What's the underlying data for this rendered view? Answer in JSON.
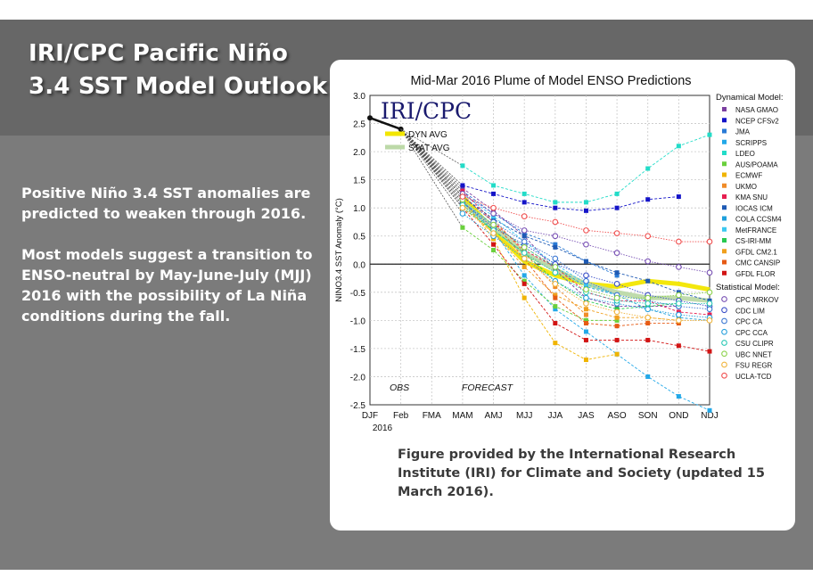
{
  "slide": {
    "title_line1": "IRI/CPC Pacific Niño",
    "title_line2": "3.4 SST Model Outlook",
    "paragraph1": "Positive Niño 3.4 SST anomalies are predicted to weaken through 2016.",
    "paragraph2": "Most models suggest a transition to ENSO-neutral by May-June-July (MJJ) 2016 with the possibility of La Niña conditions during the fall.",
    "caption": "Figure provided by the International Research Institute (IRI) for Climate and Society (updated 15 March 2016)."
  },
  "colors": {
    "title_band": "#676767",
    "background": "#7b7b7b",
    "text": "#ffffff"
  },
  "chart_data": {
    "type": "line",
    "title": "Mid-Mar 2016 Plume of Model ENSO Predictions",
    "ylabel": "NINO3.4 SST Anomaly (°C)",
    "logo": "IRI/CPC",
    "x": [
      "DJF",
      "Feb",
      "FMA",
      "MAM",
      "AMJ",
      "MJJ",
      "JJA",
      "JAS",
      "ASO",
      "SON",
      "OND",
      "NDJ"
    ],
    "x_sublabel": "2016",
    "ylim": [
      -2.5,
      3.0
    ],
    "yticks": [
      "3.0",
      "2.5",
      "2.0",
      "1.5",
      "1.0",
      "0.5",
      "0.0",
      "-0.5",
      "-1.0",
      "-1.5",
      "-2.0",
      "-2.5"
    ],
    "obs_label": "OBS",
    "forecast_label": "FORECAST",
    "obs": [
      2.6,
      2.4
    ],
    "averages": [
      {
        "name": "DYN AVG",
        "color": "#f2e600",
        "values": [
          null,
          null,
          null,
          1.2,
          0.6,
          0.05,
          -0.2,
          -0.35,
          -0.4,
          -0.3,
          -0.35,
          -0.45
        ]
      },
      {
        "name": "STAT AVG",
        "color": "#bcd9a8",
        "values": [
          null,
          null,
          null,
          1.1,
          0.65,
          0.2,
          -0.1,
          -0.35,
          -0.5,
          -0.6,
          -0.6,
          -0.65
        ]
      }
    ],
    "legend_dynamical_title": "Dynamical Model:",
    "legend_statistical_title": "Statistical Model:",
    "series": [
      {
        "name": "NASA GMAO",
        "color": "#7b3fa0",
        "kind": "dyn",
        "values": [
          null,
          null,
          null,
          1.35,
          0.95,
          0.5,
          -0.1,
          -0.6,
          -0.75,
          -0.75,
          -0.75,
          null
        ]
      },
      {
        "name": "NCEP CFSv2",
        "color": "#1414c8",
        "kind": "dyn",
        "values": [
          null,
          null,
          null,
          1.4,
          1.25,
          1.1,
          1.0,
          0.95,
          1.0,
          1.15,
          1.2,
          null
        ]
      },
      {
        "name": "JMA",
        "color": "#2a7bd6",
        "kind": "dyn",
        "values": [
          null,
          null,
          null,
          1.3,
          0.9,
          0.55,
          0.35,
          0.05,
          -0.2,
          null,
          null,
          null
        ]
      },
      {
        "name": "SCRIPPS",
        "color": "#22a8e8",
        "kind": "dyn",
        "values": [
          null,
          null,
          null,
          1.1,
          0.6,
          -0.2,
          -0.8,
          -1.2,
          -1.6,
          -2.0,
          -2.35,
          -2.6
        ]
      },
      {
        "name": "LDEO",
        "color": "#22dcc8",
        "kind": "dyn",
        "values": [
          null,
          null,
          null,
          1.75,
          1.4,
          1.25,
          1.1,
          1.1,
          1.25,
          1.7,
          2.1,
          2.3
        ]
      },
      {
        "name": "AUS/POAMA",
        "color": "#6ad03c",
        "kind": "dyn",
        "values": [
          null,
          null,
          null,
          0.65,
          0.25,
          -0.3,
          -0.75,
          -1.0,
          -1.0,
          null,
          null,
          null
        ]
      },
      {
        "name": "ECMWF",
        "color": "#f0b400",
        "kind": "dyn",
        "values": [
          null,
          null,
          null,
          1.15,
          0.45,
          -0.6,
          -1.4,
          -1.7,
          -1.6,
          null,
          null,
          null
        ]
      },
      {
        "name": "UKMO",
        "color": "#f08c28",
        "kind": "dyn",
        "values": [
          null,
          null,
          null,
          1.2,
          0.8,
          0.2,
          -0.4,
          -0.9,
          null,
          null,
          null,
          null
        ]
      },
      {
        "name": "KMA SNU",
        "color": "#e61e50",
        "kind": "dyn",
        "values": [
          null,
          null,
          null,
          1.3,
          0.75,
          0.25,
          -0.05,
          -0.5,
          -0.65,
          -0.65,
          -0.85,
          -0.9
        ]
      },
      {
        "name": "IOCAS ICM",
        "color": "#1e5ab4",
        "kind": "dyn",
        "values": [
          null,
          null,
          null,
          1.2,
          0.8,
          0.5,
          0.3,
          0.05,
          -0.15,
          -0.3,
          -0.5,
          -0.65
        ]
      },
      {
        "name": "COLA CCSM4",
        "color": "#1ea0dc",
        "kind": "dyn",
        "values": [
          null,
          null,
          null,
          1.1,
          0.7,
          0.3,
          -0.05,
          -0.4,
          -0.55,
          -0.8,
          -0.95,
          -1.0
        ]
      },
      {
        "name": "MetFRANCE",
        "color": "#3cc8f0",
        "kind": "dyn",
        "values": [
          null,
          null,
          null,
          1.25,
          0.85,
          0.4,
          0.0,
          -0.35,
          -0.55,
          null,
          null,
          null
        ]
      },
      {
        "name": "CS-IRI-MM",
        "color": "#28c850",
        "kind": "dyn",
        "values": [
          null,
          null,
          null,
          1.0,
          0.6,
          0.2,
          -0.3,
          -0.65,
          -0.8,
          -0.75,
          -0.7,
          null
        ]
      },
      {
        "name": "GFDL CM2.1",
        "color": "#f0a01e",
        "kind": "dyn",
        "values": [
          null,
          null,
          null,
          1.05,
          0.55,
          -0.05,
          -0.55,
          -0.8,
          -0.95,
          -0.95,
          -1.0,
          null
        ]
      },
      {
        "name": "CMC CANSIP",
        "color": "#e65a14",
        "kind": "dyn",
        "values": [
          null,
          null,
          null,
          1.2,
          0.75,
          0.1,
          -0.6,
          -1.05,
          -1.1,
          -1.05,
          -1.05,
          null
        ]
      },
      {
        "name": "GFDL FLOR",
        "color": "#d21414",
        "kind": "dyn",
        "values": [
          null,
          null,
          null,
          1.0,
          0.35,
          -0.35,
          -1.05,
          -1.35,
          -1.35,
          -1.35,
          -1.45,
          -1.55
        ]
      },
      {
        "name": "CPC MRKOV",
        "color": "#7850b4",
        "kind": "stat",
        "values": [
          null,
          null,
          null,
          1.25,
          0.9,
          0.6,
          0.5,
          0.35,
          0.2,
          0.05,
          -0.05,
          -0.15
        ]
      },
      {
        "name": "CDC LIM",
        "color": "#3c50c8",
        "kind": "stat",
        "values": [
          null,
          null,
          null,
          1.1,
          0.65,
          0.35,
          0.0,
          -0.2,
          -0.35,
          -0.55,
          -0.65,
          -0.75
        ]
      },
      {
        "name": "CPC CA",
        "color": "#3c78d2",
        "kind": "stat",
        "values": [
          null,
          null,
          null,
          1.2,
          0.75,
          0.4,
          0.1,
          -0.3,
          -0.55,
          -0.65,
          -0.75,
          -0.8
        ]
      },
      {
        "name": "CPC CCA",
        "color": "#28a0dc",
        "kind": "stat",
        "values": [
          null,
          null,
          null,
          0.9,
          0.5,
          0.1,
          -0.3,
          -0.6,
          -0.7,
          -0.8,
          -0.9,
          -0.95
        ]
      },
      {
        "name": "CSU CLIPR",
        "color": "#28c8b4",
        "kind": "stat",
        "values": [
          null,
          null,
          null,
          1.05,
          0.6,
          0.2,
          -0.15,
          -0.5,
          -0.65,
          -0.7,
          -0.7,
          -0.7
        ]
      },
      {
        "name": "UBC NNET",
        "color": "#8cd24b",
        "kind": "stat",
        "values": [
          null,
          null,
          null,
          1.15,
          0.7,
          0.3,
          -0.05,
          -0.45,
          -0.6,
          -0.6,
          -0.55,
          -0.5
        ]
      },
      {
        "name": "FSU REGR",
        "color": "#f0b43c",
        "kind": "stat",
        "values": [
          null,
          null,
          null,
          1.0,
          0.55,
          0.1,
          -0.35,
          -0.7,
          -0.85,
          -0.95,
          -1.0,
          -1.0
        ]
      },
      {
        "name": "UCLA-TCD",
        "color": "#f05050",
        "kind": "stat",
        "values": [
          null,
          null,
          null,
          1.2,
          1.0,
          0.85,
          0.75,
          0.6,
          0.55,
          0.5,
          0.4,
          0.4
        ]
      }
    ]
  }
}
